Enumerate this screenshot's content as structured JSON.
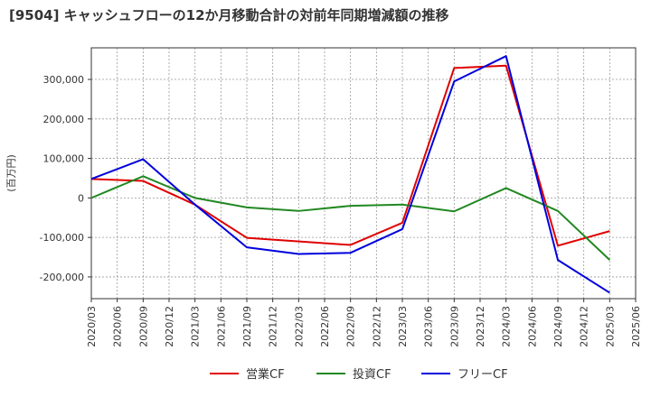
{
  "chart_data": {
    "type": "line",
    "title": "[9504]  キャッシュフローの12か月移動合計の対前年同期増減額の推移",
    "ylabel": "(百万円)",
    "xlabel": "",
    "ylim": [
      -255000,
      380000
    ],
    "yticks": [
      -200000,
      -100000,
      0,
      100000,
      200000,
      300000
    ],
    "ytick_labels": [
      "-200,000",
      "-100,000",
      "0",
      "100,000",
      "200,000",
      "300,000"
    ],
    "x_categories": [
      "2020/03",
      "2020/06",
      "2020/09",
      "2020/12",
      "2021/03",
      "2021/06",
      "2021/09",
      "2021/12",
      "2022/03",
      "2022/06",
      "2022/09",
      "2022/12",
      "2023/03",
      "2023/06",
      "2023/09",
      "2023/12",
      "2024/03",
      "2024/06",
      "2024/09",
      "2024/12",
      "2025/03",
      "2025/06"
    ],
    "grid": true,
    "legend_position": "bottom",
    "series": [
      {
        "name": "営業CF",
        "color": "#e00000",
        "points": [
          [
            "2020/03",
            48000
          ],
          [
            "2020/09",
            43000
          ],
          [
            "2021/03",
            -17000
          ],
          [
            "2021/09",
            -101000
          ],
          [
            "2022/09",
            -119000
          ],
          [
            "2023/03",
            -63000
          ],
          [
            "2023/09",
            329000
          ],
          [
            "2024/03",
            335000
          ],
          [
            "2024/09",
            -121000
          ],
          [
            "2025/03",
            -84000
          ]
        ]
      },
      {
        "name": "投資CF",
        "color": "#228822",
        "points": [
          [
            "2020/03",
            0
          ],
          [
            "2020/09",
            55000
          ],
          [
            "2021/03",
            0
          ],
          [
            "2021/09",
            -24000
          ],
          [
            "2022/03",
            -33000
          ],
          [
            "2022/09",
            -20000
          ],
          [
            "2023/03",
            -17000
          ],
          [
            "2023/09",
            -34000
          ],
          [
            "2024/03",
            25000
          ],
          [
            "2024/09",
            -33000
          ],
          [
            "2025/03",
            -157000
          ]
        ]
      },
      {
        "name": "フリーCF",
        "color": "#0000dd",
        "points": [
          [
            "2020/03",
            48000
          ],
          [
            "2020/09",
            98000
          ],
          [
            "2021/03",
            -17000
          ],
          [
            "2021/09",
            -125000
          ],
          [
            "2022/03",
            -142000
          ],
          [
            "2022/09",
            -139000
          ],
          [
            "2023/03",
            -79000
          ],
          [
            "2023/09",
            295000
          ],
          [
            "2024/03",
            359000
          ],
          [
            "2024/09",
            -157000
          ],
          [
            "2025/03",
            -240000
          ]
        ]
      }
    ]
  }
}
